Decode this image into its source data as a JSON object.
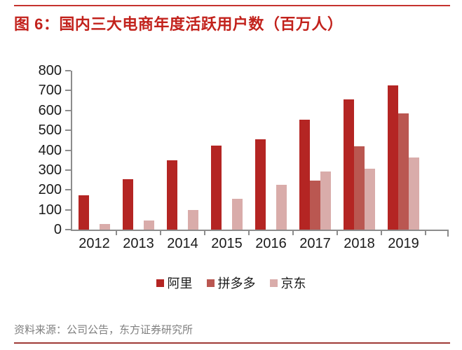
{
  "page": {
    "title": "图 6：国内三大电商年度活跃用户数（百万人）",
    "source_note": "资料来源：公司公告，东方证券研究所"
  },
  "colors": {
    "title_red": "#C2221C",
    "top_rule": "#C5332E",
    "bottom_rule": "#9E3936",
    "axis_gray": "#8C8C8C",
    "label_black": "#1A1A1A",
    "source_gray": "#7F7F7F"
  },
  "chart_data": {
    "type": "bar",
    "title": "国内三大电商年度活跃用户数（百万人）",
    "categories": [
      "2012",
      "2013",
      "2014",
      "2015",
      "2016",
      "2017",
      "2018",
      "2019"
    ],
    "series": [
      {
        "name": "阿里",
        "color": "#B42523",
        "values": [
          172,
          255,
          350,
          423,
          454,
          552,
          654,
          726
        ]
      },
      {
        "name": "拼多多",
        "color": "#BA5751",
        "values": [
          null,
          null,
          null,
          null,
          null,
          245,
          419,
          585
        ]
      },
      {
        "name": "京东",
        "color": "#D9ACAA",
        "values": [
          29,
          47,
          97,
          155,
          227,
          293,
          305,
          362
        ]
      }
    ],
    "ylim": [
      0,
      800
    ],
    "yticks": [
      0,
      100,
      200,
      300,
      400,
      500,
      600,
      700,
      800
    ],
    "xlabel": "",
    "ylabel": "",
    "grid": false,
    "legend_position": "bottom"
  }
}
